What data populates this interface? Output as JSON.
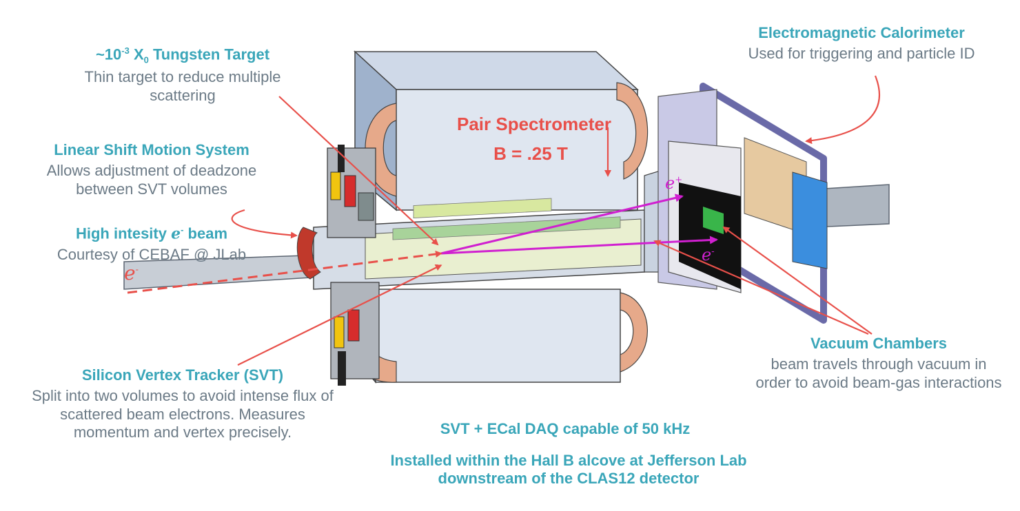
{
  "target": {
    "title_prefix": "~10",
    "title_exp": "-3",
    "title_x": "X",
    "title_sub": "0",
    "title_suffix": " Tungsten Target",
    "desc": "Thin target to reduce multiple scattering"
  },
  "linear_shift": {
    "title": "Linear Shift Motion System",
    "desc": "Allows adjustment of deadzone between SVT volumes"
  },
  "beam": {
    "title_prefix": "High intesity ",
    "title_e": "e",
    "title_sup": "-",
    "title_suffix": " beam",
    "desc": "Courtesy of CEBAF @ JLab"
  },
  "svt": {
    "title": "Silicon Vertex Tracker (SVT)",
    "desc": "Split into two volumes to avoid intense flux of scattered beam electrons. Measures momentum and vertex precisely."
  },
  "ecal": {
    "title": "Electromagnetic Calorimeter",
    "desc": "Used for triggering and particle ID"
  },
  "vacuum": {
    "title": "Vacuum Chambers",
    "desc": "beam travels through vacuum in order to avoid beam-gas interactions"
  },
  "spectrometer": {
    "title": "Pair Spectrometer",
    "field": "B = .25 T"
  },
  "daq": {
    "text": "SVT + ECal DAQ capable of 50 kHz"
  },
  "location": {
    "text": "Installed within the Hall B alcove at Jefferson Lab downstream of the CLAS12 detector"
  },
  "particles": {
    "e_minus_beam": "e",
    "e_minus_beam_sup": "-",
    "e_plus": "e",
    "e_plus_sup": "+",
    "e_minus": "e",
    "e_minus_sup": "-"
  },
  "colors": {
    "heading": "#3aa6b9",
    "description": "#6b7a86",
    "callout": "#e8504a",
    "track": "#d020d0",
    "magnet": "#b7c6dc",
    "coil": "#e6a98a"
  }
}
